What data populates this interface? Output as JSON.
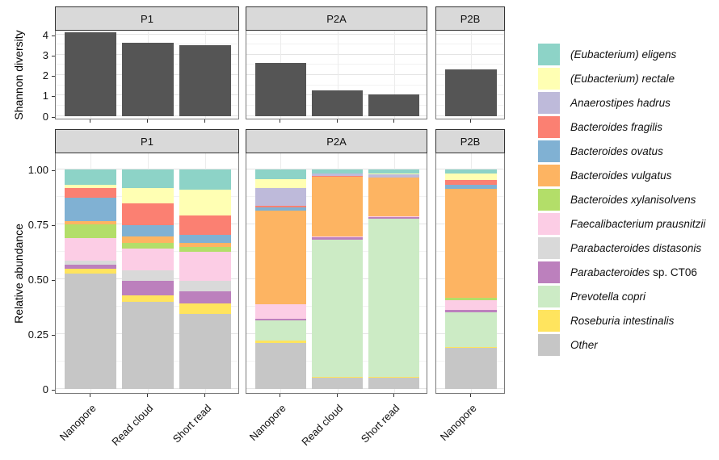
{
  "axes": {
    "shannon_title": "Shannon diversity",
    "abundance_title": "Relative abundance",
    "shannon_ticks": [
      {
        "v": 4,
        "label": "4"
      },
      {
        "v": 3,
        "label": "3"
      },
      {
        "v": 2,
        "label": "2"
      },
      {
        "v": 1,
        "label": "1"
      },
      {
        "v": 0,
        "label": "0"
      }
    ],
    "abundance_ticks": [
      {
        "v": 1,
        "label": "1.00"
      },
      {
        "v": 0.75,
        "label": "0.75"
      },
      {
        "v": 0.5,
        "label": "0.50"
      },
      {
        "v": 0.25,
        "label": "0.25"
      },
      {
        "v": 0,
        "label": "0"
      }
    ]
  },
  "chart_data": [
    {
      "type": "bar",
      "ylabel": "Shannon diversity",
      "ylim": [
        0,
        4.22
      ],
      "bar_color": "#555555",
      "panels": [
        {
          "label": "P1",
          "categories": [
            "Nanopore",
            "Read cloud",
            "Short read"
          ],
          "values": [
            4.1,
            3.6,
            3.45
          ]
        },
        {
          "label": "P2A",
          "categories": [
            "Nanopore",
            "Read cloud",
            "Short read"
          ],
          "values": [
            2.6,
            1.25,
            1.05
          ]
        },
        {
          "label": "P2B",
          "categories": [
            "Nanopore"
          ],
          "values": [
            2.3
          ]
        }
      ]
    },
    {
      "type": "stacked-bar",
      "ylabel": "Relative abundance",
      "ylim": [
        0,
        1
      ],
      "stack_order_top_to_bottom": [
        "eligens",
        "rectale",
        "hadrus",
        "fragilis",
        "ovatus",
        "vulgatus",
        "xylanisolvens",
        "prausnitzii",
        "distasonis",
        "ct06",
        "copri",
        "intestinalis",
        "other"
      ],
      "panels": [
        {
          "label": "P1",
          "categories": [
            "Nanopore",
            "Read cloud",
            "Short read"
          ],
          "bars": [
            {
              "eligens": 0.07,
              "rectale": 0.015,
              "fragilis": 0.045,
              "ovatus": 0.105,
              "vulgatus": 0.015,
              "xylanisolvens": 0.065,
              "prausnitzii": 0.1,
              "distasonis": 0.02,
              "ct06": 0.02,
              "intestinalis": 0.02,
              "other": 0.525
            },
            {
              "eligens": 0.085,
              "rectale": 0.07,
              "fragilis": 0.1,
              "ovatus": 0.05,
              "vulgatus": 0.03,
              "xylanisolvens": 0.025,
              "prausnitzii": 0.1,
              "distasonis": 0.05,
              "ct06": 0.065,
              "intestinalis": 0.03,
              "other": 0.395
            },
            {
              "eligens": 0.095,
              "rectale": 0.115,
              "fragilis": 0.09,
              "ovatus": 0.035,
              "vulgatus": 0.02,
              "xylanisolvens": 0.02,
              "prausnitzii": 0.135,
              "distasonis": 0.045,
              "ct06": 0.055,
              "intestinalis": 0.05,
              "other": 0.34
            }
          ]
        },
        {
          "label": "P2A",
          "categories": [
            "Nanopore",
            "Read cloud",
            "Short read"
          ],
          "bars": [
            {
              "eligens": 0.045,
              "rectale": 0.04,
              "hadrus": 0.08,
              "fragilis": 0.01,
              "ovatus": 0.015,
              "vulgatus": 0.425,
              "prausnitzii": 0.065,
              "ct06": 0.01,
              "copri": 0.09,
              "intestinalis": 0.01,
              "other": 0.21
            },
            {
              "eligens": 0.02,
              "hadrus": 0.01,
              "fragilis": 0.005,
              "vulgatus": 0.27,
              "prausnitzii": 0.005,
              "ct06": 0.01,
              "copri": 0.625,
              "intestinalis": 0.005,
              "other": 0.05
            },
            {
              "eligens": 0.02,
              "rectale": 0.005,
              "hadrus": 0.015,
              "vulgatus": 0.175,
              "prausnitzii": 0.005,
              "ct06": 0.005,
              "copri": 0.72,
              "intestinalis": 0.005,
              "other": 0.05
            }
          ]
        },
        {
          "label": "P2B",
          "categories": [
            "Nanopore"
          ],
          "bars": [
            {
              "eligens": 0.02,
              "rectale": 0.03,
              "fragilis": 0.02,
              "ovatus": 0.02,
              "vulgatus": 0.495,
              "xylanisolvens": 0.01,
              "prausnitzii": 0.045,
              "ct06": 0.01,
              "copri": 0.16,
              "intestinalis": 0.005,
              "other": 0.185
            }
          ]
        }
      ]
    }
  ],
  "legend": {
    "items": [
      {
        "id": "eligens",
        "label": "(Eubacterium) eligens",
        "color": "#8DD3C7"
      },
      {
        "id": "rectale",
        "label": "(Eubacterium) rectale",
        "color": "#FFFFB3"
      },
      {
        "id": "hadrus",
        "label": "Anaerostipes hadrus",
        "color": "#BEBADA"
      },
      {
        "id": "fragilis",
        "label": "Bacteroides fragilis",
        "color": "#FB8072"
      },
      {
        "id": "ovatus",
        "label": "Bacteroides ovatus",
        "color": "#80B1D3"
      },
      {
        "id": "vulgatus",
        "label": "Bacteroides vulgatus",
        "color": "#FDB462"
      },
      {
        "id": "xylanisolvens",
        "label": "Bacteroides xylanisolvens",
        "color": "#B3DE69"
      },
      {
        "id": "prausnitzii",
        "label": "Faecalibacterium prausnitzii",
        "color": "#FCCDE5"
      },
      {
        "id": "distasonis",
        "label": "Parabacteroides distasonis",
        "color": "#D9D9D9"
      },
      {
        "id": "ct06",
        "label": "Parabacteroides",
        "label_plain": " sp. CT06",
        "color": "#BC80BD"
      },
      {
        "id": "copri",
        "label": "Prevotella copri",
        "color": "#CCEBC5"
      },
      {
        "id": "intestinalis",
        "label": "Roseburia intestinalis",
        "color": "#FFE45E"
      },
      {
        "id": "other",
        "label": "Other",
        "color": "#C6C6C6"
      }
    ]
  }
}
